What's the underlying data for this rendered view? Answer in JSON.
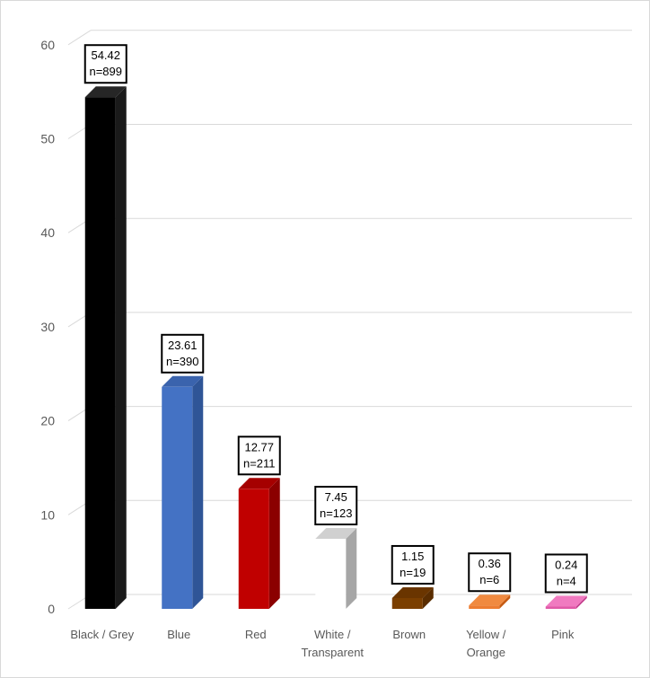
{
  "chart_data": {
    "type": "bar",
    "style": "3d-column",
    "title": "",
    "xlabel": "",
    "ylabel": "",
    "ylim": [
      0,
      60
    ],
    "yticks": [
      0,
      10,
      20,
      30,
      40,
      50,
      60
    ],
    "grid": true,
    "legend": "none",
    "categories": [
      [
        "Black / Grey"
      ],
      [
        "Blue"
      ],
      [
        "Red"
      ],
      [
        "White /",
        "Transparent"
      ],
      [
        "Brown"
      ],
      [
        "Yellow /",
        "Orange"
      ],
      [
        "Pink"
      ]
    ],
    "values": [
      54.42,
      23.61,
      12.77,
      7.45,
      1.15,
      0.36,
      0.24
    ],
    "data_labels": [
      [
        "54.42",
        "n=899"
      ],
      [
        "23.61",
        "n=390"
      ],
      [
        "12.77",
        "n=211"
      ],
      [
        "7.45",
        "n=123"
      ],
      [
        "1.15",
        "n=19"
      ],
      [
        "0.36",
        "n=6"
      ],
      [
        "0.24",
        "n=4"
      ]
    ],
    "colors": [
      {
        "front": "#000000",
        "side": "#1a1a1a",
        "top": "#262626"
      },
      {
        "front": "#4472c4",
        "side": "#2f5597",
        "top": "#3a63ad"
      },
      {
        "front": "#c00000",
        "side": "#8b0000",
        "top": "#a50000"
      },
      {
        "front": "#ffffff",
        "side": "#a6a6a6",
        "top": "#d0d0d0"
      },
      {
        "front": "#7b3f00",
        "side": "#5a2d00",
        "top": "#6a3500"
      },
      {
        "front": "#ed7d31",
        "side": "#c55a11",
        "top": "#f08a40"
      },
      {
        "front": "#e05aa8",
        "side": "#c23d8c",
        "top": "#f07ac0"
      }
    ],
    "grid_color": "#d9d9d9"
  }
}
